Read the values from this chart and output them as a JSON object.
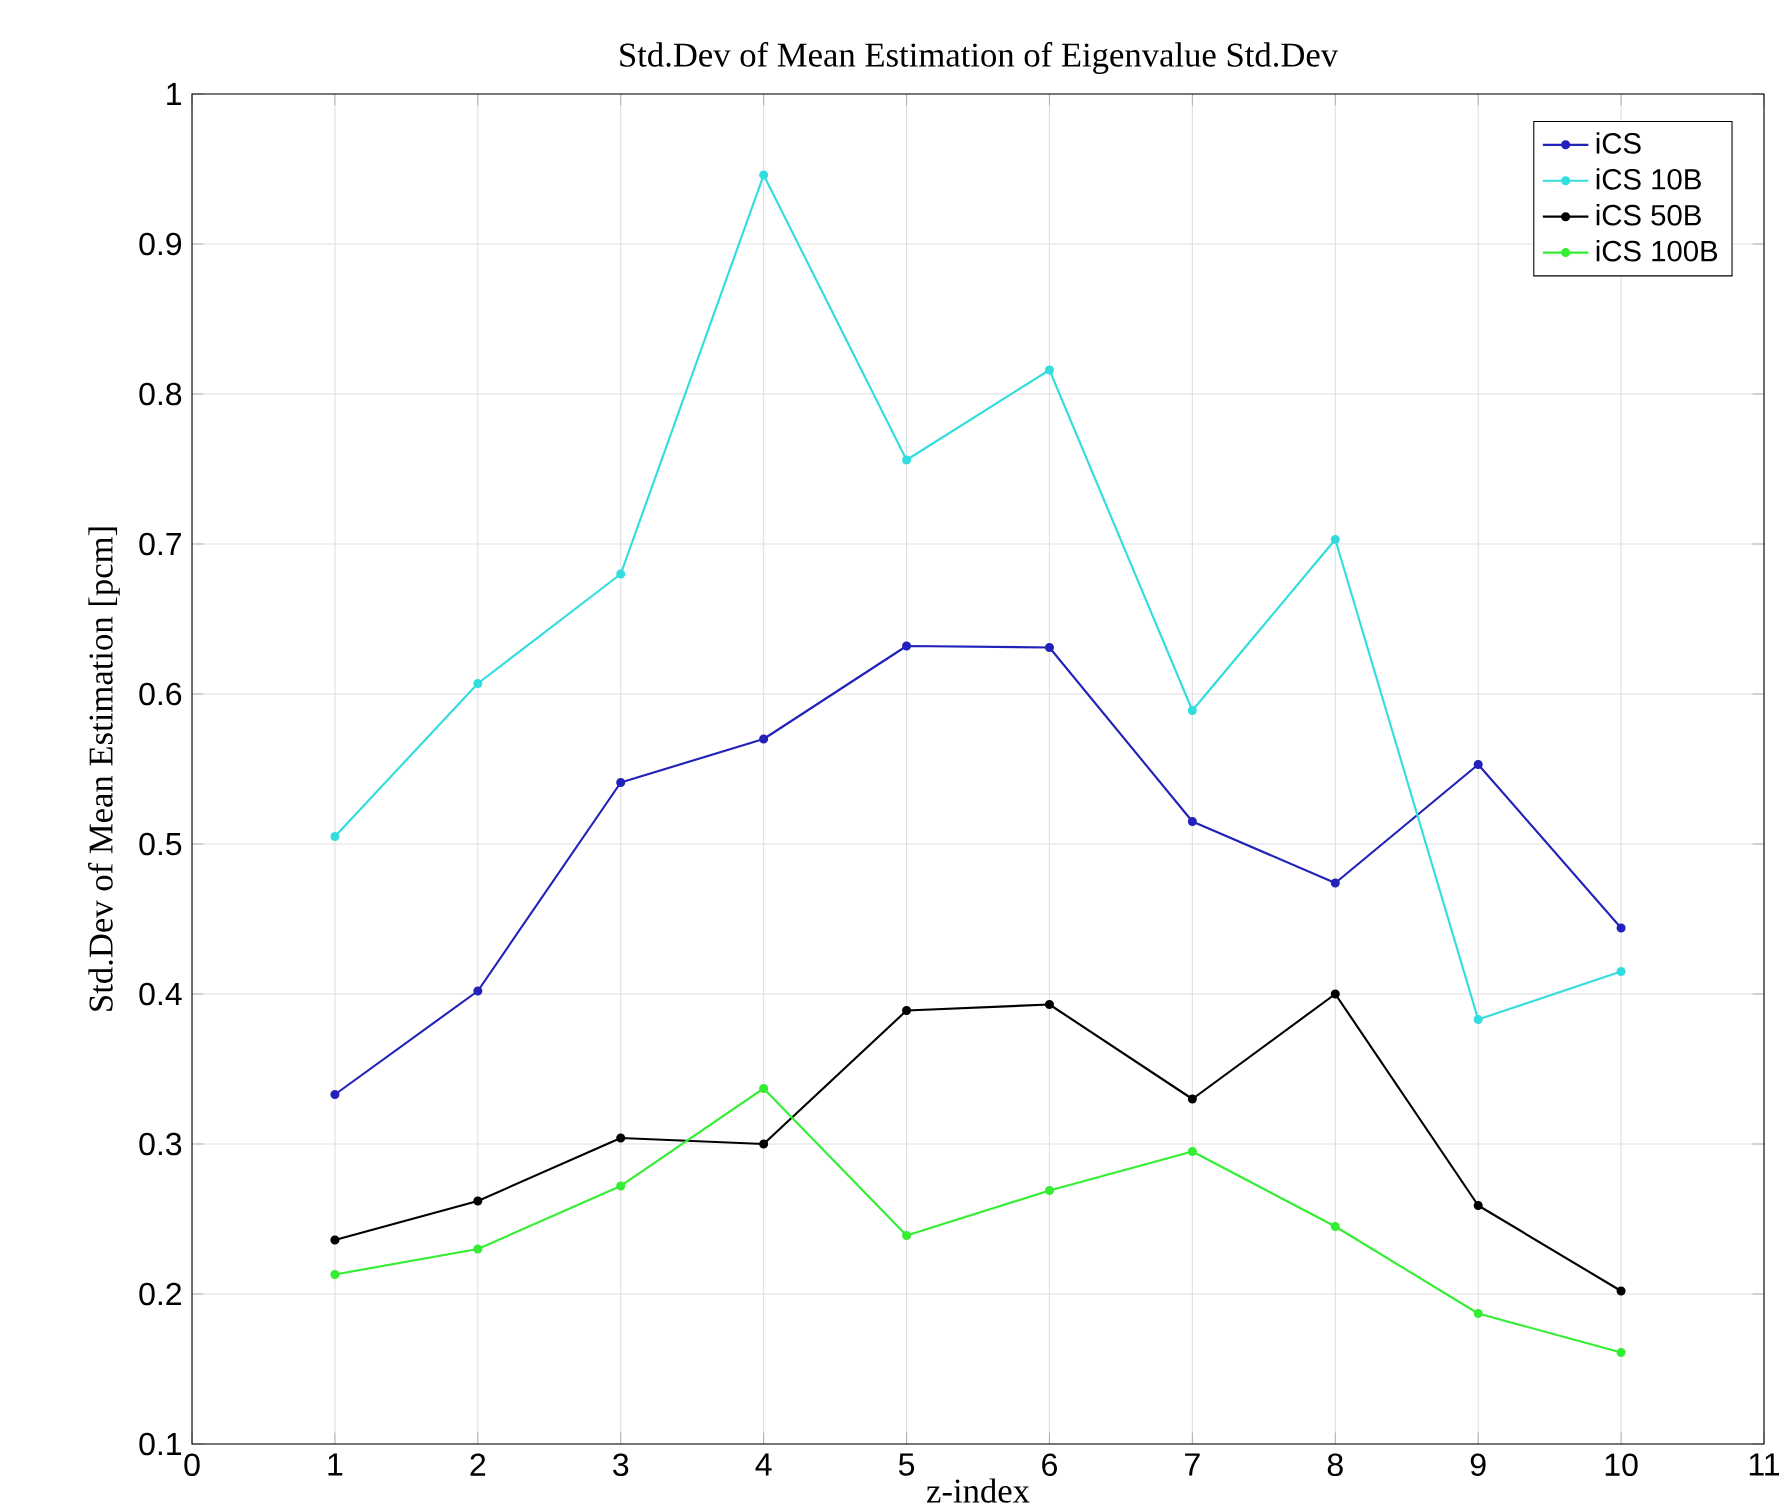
{
  "chart_data": {
    "type": "line",
    "title": "Std.Dev of Mean Estimation of Eigenvalue Std.Dev",
    "xlabel": "z-index",
    "ylabel": "Std.Dev of Mean Estimation [pcm]",
    "x": [
      1,
      2,
      3,
      4,
      5,
      6,
      7,
      8,
      9,
      10
    ],
    "series": [
      {
        "name": "iCS",
        "color": "#2222bb",
        "values": [
          0.333,
          0.402,
          0.541,
          0.57,
          0.632,
          0.631,
          0.515,
          0.474,
          0.553,
          0.444
        ]
      },
      {
        "name": "iCS 10B",
        "color": "#33dddd",
        "values": [
          0.505,
          0.607,
          0.68,
          0.946,
          0.756,
          0.816,
          0.589,
          0.703,
          0.383,
          0.415
        ]
      },
      {
        "name": "iCS 50B",
        "color": "#000000",
        "values": [
          0.236,
          0.262,
          0.304,
          0.3,
          0.389,
          0.393,
          0.33,
          0.4,
          0.259,
          0.202
        ]
      },
      {
        "name": "iCS 100B",
        "color": "#33ee33",
        "values": [
          0.213,
          0.23,
          0.272,
          0.337,
          0.239,
          0.269,
          0.295,
          0.245,
          0.187,
          0.161
        ]
      }
    ],
    "xlim": [
      0,
      11
    ],
    "xticks": [
      0,
      1,
      2,
      3,
      4,
      5,
      6,
      7,
      8,
      9,
      10,
      11
    ],
    "ylim": [
      0.1,
      1
    ],
    "yticks": [
      0.1,
      0.2,
      0.3,
      0.4,
      0.5,
      0.6,
      0.7,
      0.8,
      0.9,
      1
    ],
    "grid": true,
    "legend": "top right",
    "marker": "circle",
    "line_style": "solid"
  }
}
